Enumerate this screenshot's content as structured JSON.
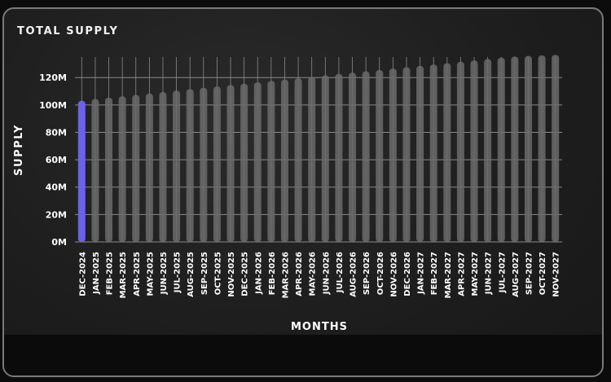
{
  "card": {
    "title": "TOTAL SUPPLY"
  },
  "colors": {
    "background": "#1e1e1e",
    "bar": "#6b6b6b",
    "highlight_bar": "#6b63e6",
    "grid": "#8a8a8a",
    "text": "#ffffff"
  },
  "chart_data": {
    "type": "bar",
    "xlabel": "MONTHS",
    "ylabel": "SUPPLY",
    "ylim": [
      0,
      135
    ],
    "yticks": [
      "0M",
      "20M",
      "40M",
      "60M",
      "80M",
      "100M",
      "120M"
    ],
    "ytick_values": [
      0,
      20,
      40,
      60,
      80,
      100,
      120
    ],
    "grid": true,
    "highlight_index": 0,
    "categories": [
      "DEC-2024",
      "JAN-2025",
      "FEB-2025",
      "MAR-2025",
      "APR-2025",
      "MAY-2025",
      "JUN-2025",
      "JUL-2025",
      "AUG-2025",
      "SEP-2025",
      "OCT-2025",
      "NOV-2025",
      "DEC-2025",
      "JAN-2026",
      "FEB-2026",
      "MAR-2026",
      "APR-2026",
      "MAY-2026",
      "JUN-2026",
      "JUL-2026",
      "AUG-2026",
      "SEP-2026",
      "OCT-2026",
      "NOV-2026",
      "DEC-2026",
      "JAN-2027",
      "FEB-2027",
      "MAR-2027",
      "APR-2027",
      "MAY-2027",
      "JUN-2027",
      "JUL-2027",
      "AUG-2027",
      "SEP-2027",
      "OCT-2027",
      "NOV-2027"
    ],
    "values": [
      103,
      104.3,
      105.3,
      106.3,
      107.3,
      108.3,
      109.4,
      110.5,
      111.5,
      112.5,
      113.5,
      114.5,
      115.5,
      116.5,
      117.5,
      118.5,
      119.5,
      120.5,
      121.6,
      122.6,
      123.6,
      124.5,
      125.5,
      126.5,
      127.5,
      128.5,
      129.5,
      130.5,
      131.5,
      132.5,
      133.5,
      134.5,
      135.3,
      135.8,
      136.2,
      136.5
    ]
  }
}
